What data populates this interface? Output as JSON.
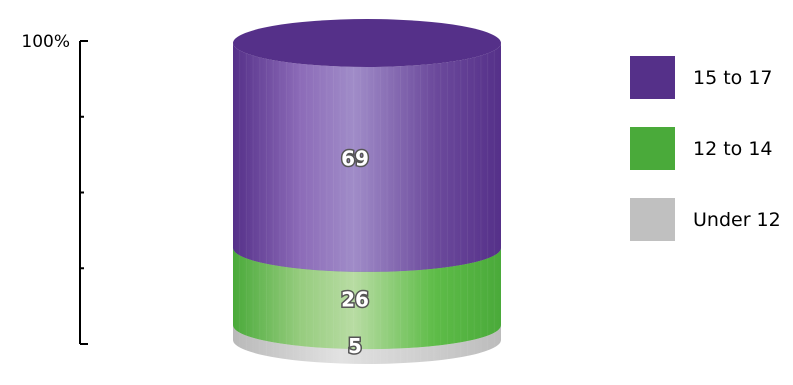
{
  "chart_data": {
    "type": "bar",
    "subtype": "stacked-cylinder-100-percent",
    "categories": [
      ""
    ],
    "series": [
      {
        "name": "Under 12",
        "values": [
          5
        ],
        "color": "#c0c0c0"
      },
      {
        "name": "12 to 14",
        "values": [
          26
        ],
        "color": "#4aaa3a"
      },
      {
        "name": "15 to 17",
        "values": [
          69
        ],
        "color": "#553089"
      }
    ],
    "ylim": [
      0,
      100
    ],
    "y_tick_label": "100%",
    "y_tick_count": 4,
    "legend_position": "right",
    "legend_order": [
      "15 to 17",
      "12 to 14",
      "Under 12"
    ],
    "grid": false
  },
  "legend": {
    "items": [
      {
        "label": "15 to 17",
        "color": "#553089"
      },
      {
        "label": "12 to 14",
        "color": "#4aaa3a"
      },
      {
        "label": "Under 12",
        "color": "#c0c0c0"
      }
    ]
  }
}
